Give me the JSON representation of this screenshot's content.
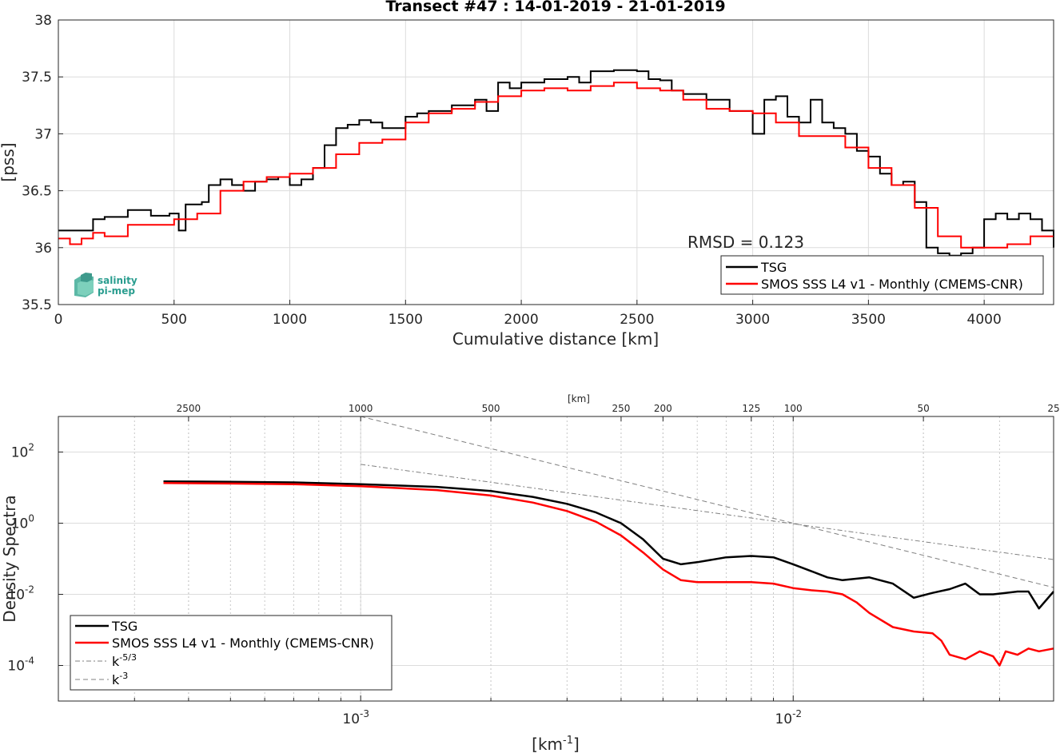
{
  "top": {
    "title": "Transect #47 : 14-01-2019 - 21-01-2019",
    "xlabel": "Cumulative distance [km]",
    "ylabel": "[pss]",
    "annotation": "RMSD = 0.123",
    "logo": {
      "line1": "salinity",
      "line2": "pi-mep"
    },
    "legend": [
      {
        "label": "TSG",
        "color": "#000000"
      },
      {
        "label": "SMOS SSS L4 v1 - Monthly (CMEMS-CNR)",
        "color": "#ff0000"
      }
    ]
  },
  "bottom": {
    "ylabel": "Density Spectra",
    "xlabel": "[km",
    "xlabel_sup": "-1",
    "xlabel_end": "]",
    "top_axis_label": "[km]",
    "legend": [
      {
        "label": "TSG",
        "color": "#000000",
        "style": "solid"
      },
      {
        "label": "SMOS SSS L4 v1 - Monthly (CMEMS-CNR)",
        "color": "#ff0000",
        "style": "solid"
      },
      {
        "label": "k",
        "sup": "-5/3",
        "color": "#808080",
        "style": "dashdot"
      },
      {
        "label": "k",
        "sup": "-3",
        "color": "#808080",
        "style": "dashed"
      }
    ]
  },
  "chart_data": [
    {
      "type": "line",
      "title": "Transect #47 : 14-01-2019 - 21-01-2019",
      "xlabel": "Cumulative distance [km]",
      "ylabel": "[pss]",
      "xlim": [
        0,
        4300
      ],
      "ylim": [
        35.5,
        38
      ],
      "xticks": [
        0,
        500,
        1000,
        1500,
        2000,
        2500,
        3000,
        3500,
        4000
      ],
      "yticks": [
        35.5,
        36,
        36.5,
        37,
        37.5,
        38
      ],
      "grid": true,
      "legend_position": "bottom-right",
      "series": [
        {
          "name": "TSG",
          "x": [
            0,
            100,
            150,
            200,
            300,
            400,
            480,
            520,
            550,
            620,
            650,
            700,
            750,
            800,
            850,
            900,
            950,
            1000,
            1050,
            1100,
            1150,
            1200,
            1250,
            1300,
            1350,
            1400,
            1500,
            1550,
            1600,
            1700,
            1800,
            1850,
            1900,
            1950,
            2000,
            2100,
            2200,
            2250,
            2300,
            2400,
            2500,
            2550,
            2600,
            2650,
            2700,
            2800,
            2900,
            2950,
            3000,
            3050,
            3100,
            3150,
            3200,
            3250,
            3300,
            3350,
            3400,
            3450,
            3500,
            3550,
            3600,
            3650,
            3700,
            3750,
            3800,
            3850,
            3900,
            3950,
            4000,
            4050,
            4100,
            4150,
            4200,
            4250,
            4300
          ],
          "values": [
            36.15,
            36.15,
            36.25,
            36.27,
            36.33,
            36.28,
            36.3,
            36.15,
            36.38,
            36.4,
            36.55,
            36.6,
            36.55,
            36.5,
            36.58,
            36.6,
            36.62,
            36.55,
            36.6,
            36.7,
            36.9,
            37.05,
            37.08,
            37.12,
            37.1,
            37.05,
            37.15,
            37.18,
            37.2,
            37.25,
            37.3,
            37.2,
            37.45,
            37.4,
            37.45,
            37.48,
            37.5,
            37.45,
            37.55,
            37.56,
            37.55,
            37.48,
            37.47,
            37.38,
            37.35,
            37.3,
            37.2,
            37.2,
            37.0,
            37.3,
            37.33,
            37.15,
            37.1,
            37.3,
            37.1,
            37.05,
            37.0,
            36.85,
            36.8,
            36.65,
            36.55,
            36.58,
            36.4,
            36.0,
            35.95,
            35.93,
            35.95,
            36.0,
            36.25,
            36.3,
            36.25,
            36.3,
            36.25,
            36.15,
            36.0
          ]
        },
        {
          "name": "SMOS SSS L4 v1 - Monthly (CMEMS-CNR)",
          "x": [
            0,
            50,
            100,
            150,
            200,
            300,
            400,
            500,
            600,
            700,
            800,
            900,
            1000,
            1100,
            1200,
            1300,
            1400,
            1500,
            1600,
            1700,
            1800,
            1900,
            2000,
            2100,
            2200,
            2300,
            2400,
            2500,
            2600,
            2700,
            2800,
            2900,
            3000,
            3100,
            3200,
            3300,
            3400,
            3500,
            3600,
            3700,
            3800,
            3900,
            4000,
            4100,
            4200,
            4300
          ],
          "values": [
            36.08,
            36.03,
            36.08,
            36.13,
            36.1,
            36.2,
            36.2,
            36.25,
            36.3,
            36.5,
            36.58,
            36.62,
            36.65,
            36.7,
            36.82,
            36.92,
            36.95,
            37.1,
            37.18,
            37.22,
            37.28,
            37.33,
            37.38,
            37.4,
            37.38,
            37.42,
            37.45,
            37.4,
            37.38,
            37.3,
            37.22,
            37.2,
            37.18,
            37.1,
            36.98,
            36.98,
            36.88,
            36.7,
            36.55,
            36.35,
            36.1,
            36.0,
            36.0,
            36.03,
            36.1,
            36.1
          ]
        }
      ]
    },
    {
      "type": "line",
      "xlabel": "[km^-1]",
      "ylabel": "Density Spectra",
      "xscale": "log",
      "yscale": "log",
      "xlim": [
        0.0002,
        0.04
      ],
      "ylim": [
        1e-05,
        1000
      ],
      "xticks": [
        0.001,
        0.01
      ],
      "xtick_labels": [
        "10^-3",
        "10^-2"
      ],
      "yticks": [
        0.0001,
        0.01,
        1,
        100
      ],
      "ytick_labels": [
        "10^-4",
        "10^-2",
        "10^0",
        "10^2"
      ],
      "top_axis": {
        "label": "[km]",
        "ticks": [
          2500,
          1000,
          500,
          250,
          200,
          125,
          100,
          50,
          25
        ]
      },
      "grid": true,
      "legend_position": "bottom-left",
      "series": [
        {
          "name": "TSG",
          "x": [
            0.00035,
            0.0005,
            0.0007,
            0.001,
            0.0015,
            0.002,
            0.0025,
            0.003,
            0.0035,
            0.004,
            0.0045,
            0.005,
            0.0055,
            0.006,
            0.007,
            0.008,
            0.009,
            0.01,
            0.011,
            0.012,
            0.013,
            0.015,
            0.017,
            0.019,
            0.021,
            0.023,
            0.025,
            0.027,
            0.029,
            0.031,
            0.033,
            0.035,
            0.037,
            0.04
          ],
          "values": [
            15,
            14.5,
            14,
            12.5,
            10.5,
            8,
            5.5,
            3.5,
            2,
            1,
            0.35,
            0.1,
            0.07,
            0.08,
            0.11,
            0.12,
            0.11,
            0.07,
            0.045,
            0.03,
            0.025,
            0.03,
            0.02,
            0.008,
            0.011,
            0.014,
            0.02,
            0.01,
            0.01,
            0.011,
            0.012,
            0.012,
            0.004,
            0.012
          ]
        },
        {
          "name": "SMOS SSS L4 v1 - Monthly (CMEMS-CNR)",
          "x": [
            0.00035,
            0.0005,
            0.0007,
            0.001,
            0.0015,
            0.002,
            0.0025,
            0.003,
            0.0035,
            0.004,
            0.0045,
            0.005,
            0.0055,
            0.006,
            0.007,
            0.008,
            0.009,
            0.01,
            0.011,
            0.012,
            0.013,
            0.014,
            0.015,
            0.017,
            0.019,
            0.021,
            0.022,
            0.023,
            0.025,
            0.027,
            0.029,
            0.03,
            0.031,
            0.033,
            0.035,
            0.037,
            0.04
          ],
          "values": [
            13.5,
            13,
            12.5,
            11,
            8.5,
            6,
            3.8,
            2.2,
            1.1,
            0.45,
            0.15,
            0.05,
            0.025,
            0.022,
            0.022,
            0.022,
            0.02,
            0.015,
            0.013,
            0.012,
            0.01,
            0.006,
            0.003,
            0.0012,
            0.0009,
            0.0008,
            0.0005,
            0.0002,
            0.00015,
            0.00025,
            0.00018,
            0.0001,
            0.00025,
            0.0002,
            0.0003,
            0.00025,
            0.0003
          ]
        },
        {
          "name": "k^-5/3",
          "x": [
            0.001,
            0.04
          ],
          "values": [
            45,
            0.095
          ]
        },
        {
          "name": "k^-3",
          "x": [
            0.001,
            0.04
          ],
          "values": [
            1000,
            0.0156
          ]
        }
      ]
    }
  ]
}
